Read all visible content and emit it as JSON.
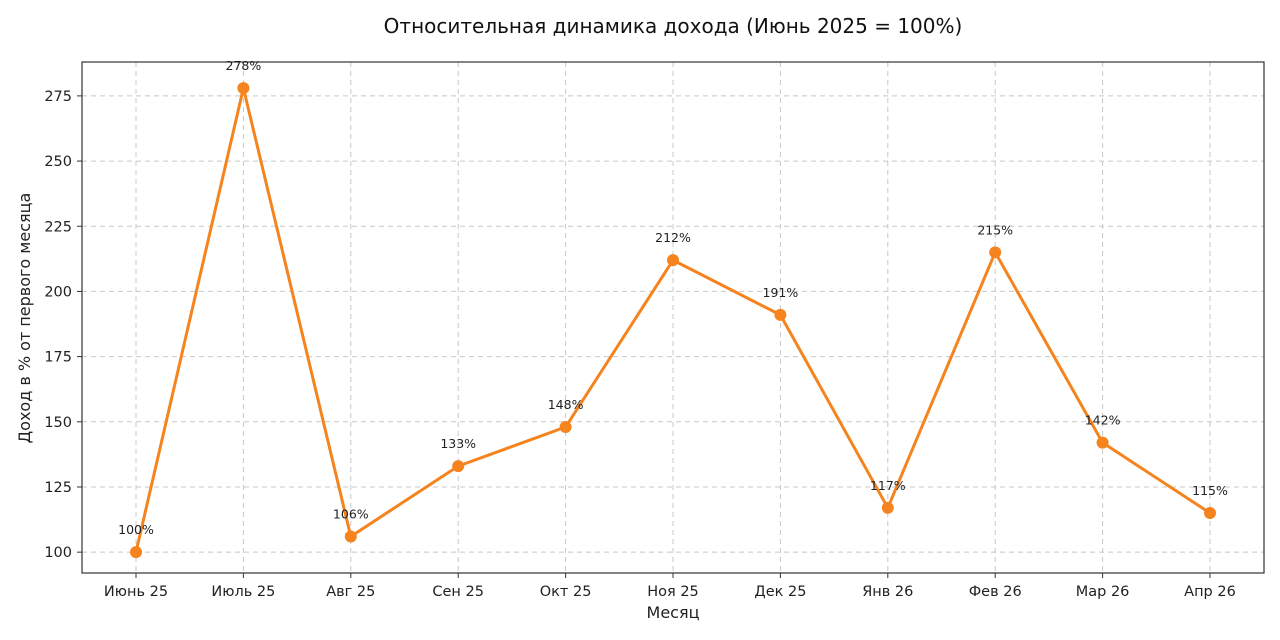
{
  "chart_data": {
    "type": "line",
    "title": "Относительная динамика дохода (Июнь 2025 = 100%)",
    "xlabel": "Месяц",
    "ylabel": "Доход в % от первого месяца",
    "categories": [
      "Июнь 25",
      "Июль 25",
      "Авг 25",
      "Сен 25",
      "Окт 25",
      "Ноя 25",
      "Дек 25",
      "Янв 26",
      "Фев 26",
      "Мар 26",
      "Апр 26"
    ],
    "values": [
      100,
      278,
      106,
      133,
      148,
      212,
      191,
      117,
      215,
      142,
      115
    ],
    "data_labels": [
      "100%",
      "278%",
      "106%",
      "133%",
      "148%",
      "212%",
      "191%",
      "117%",
      "215%",
      "142%",
      "115%"
    ],
    "yticks": [
      100,
      125,
      150,
      175,
      200,
      225,
      250,
      275
    ],
    "ylim": [
      92,
      288
    ],
    "grid": true,
    "color": "#f5841f"
  }
}
